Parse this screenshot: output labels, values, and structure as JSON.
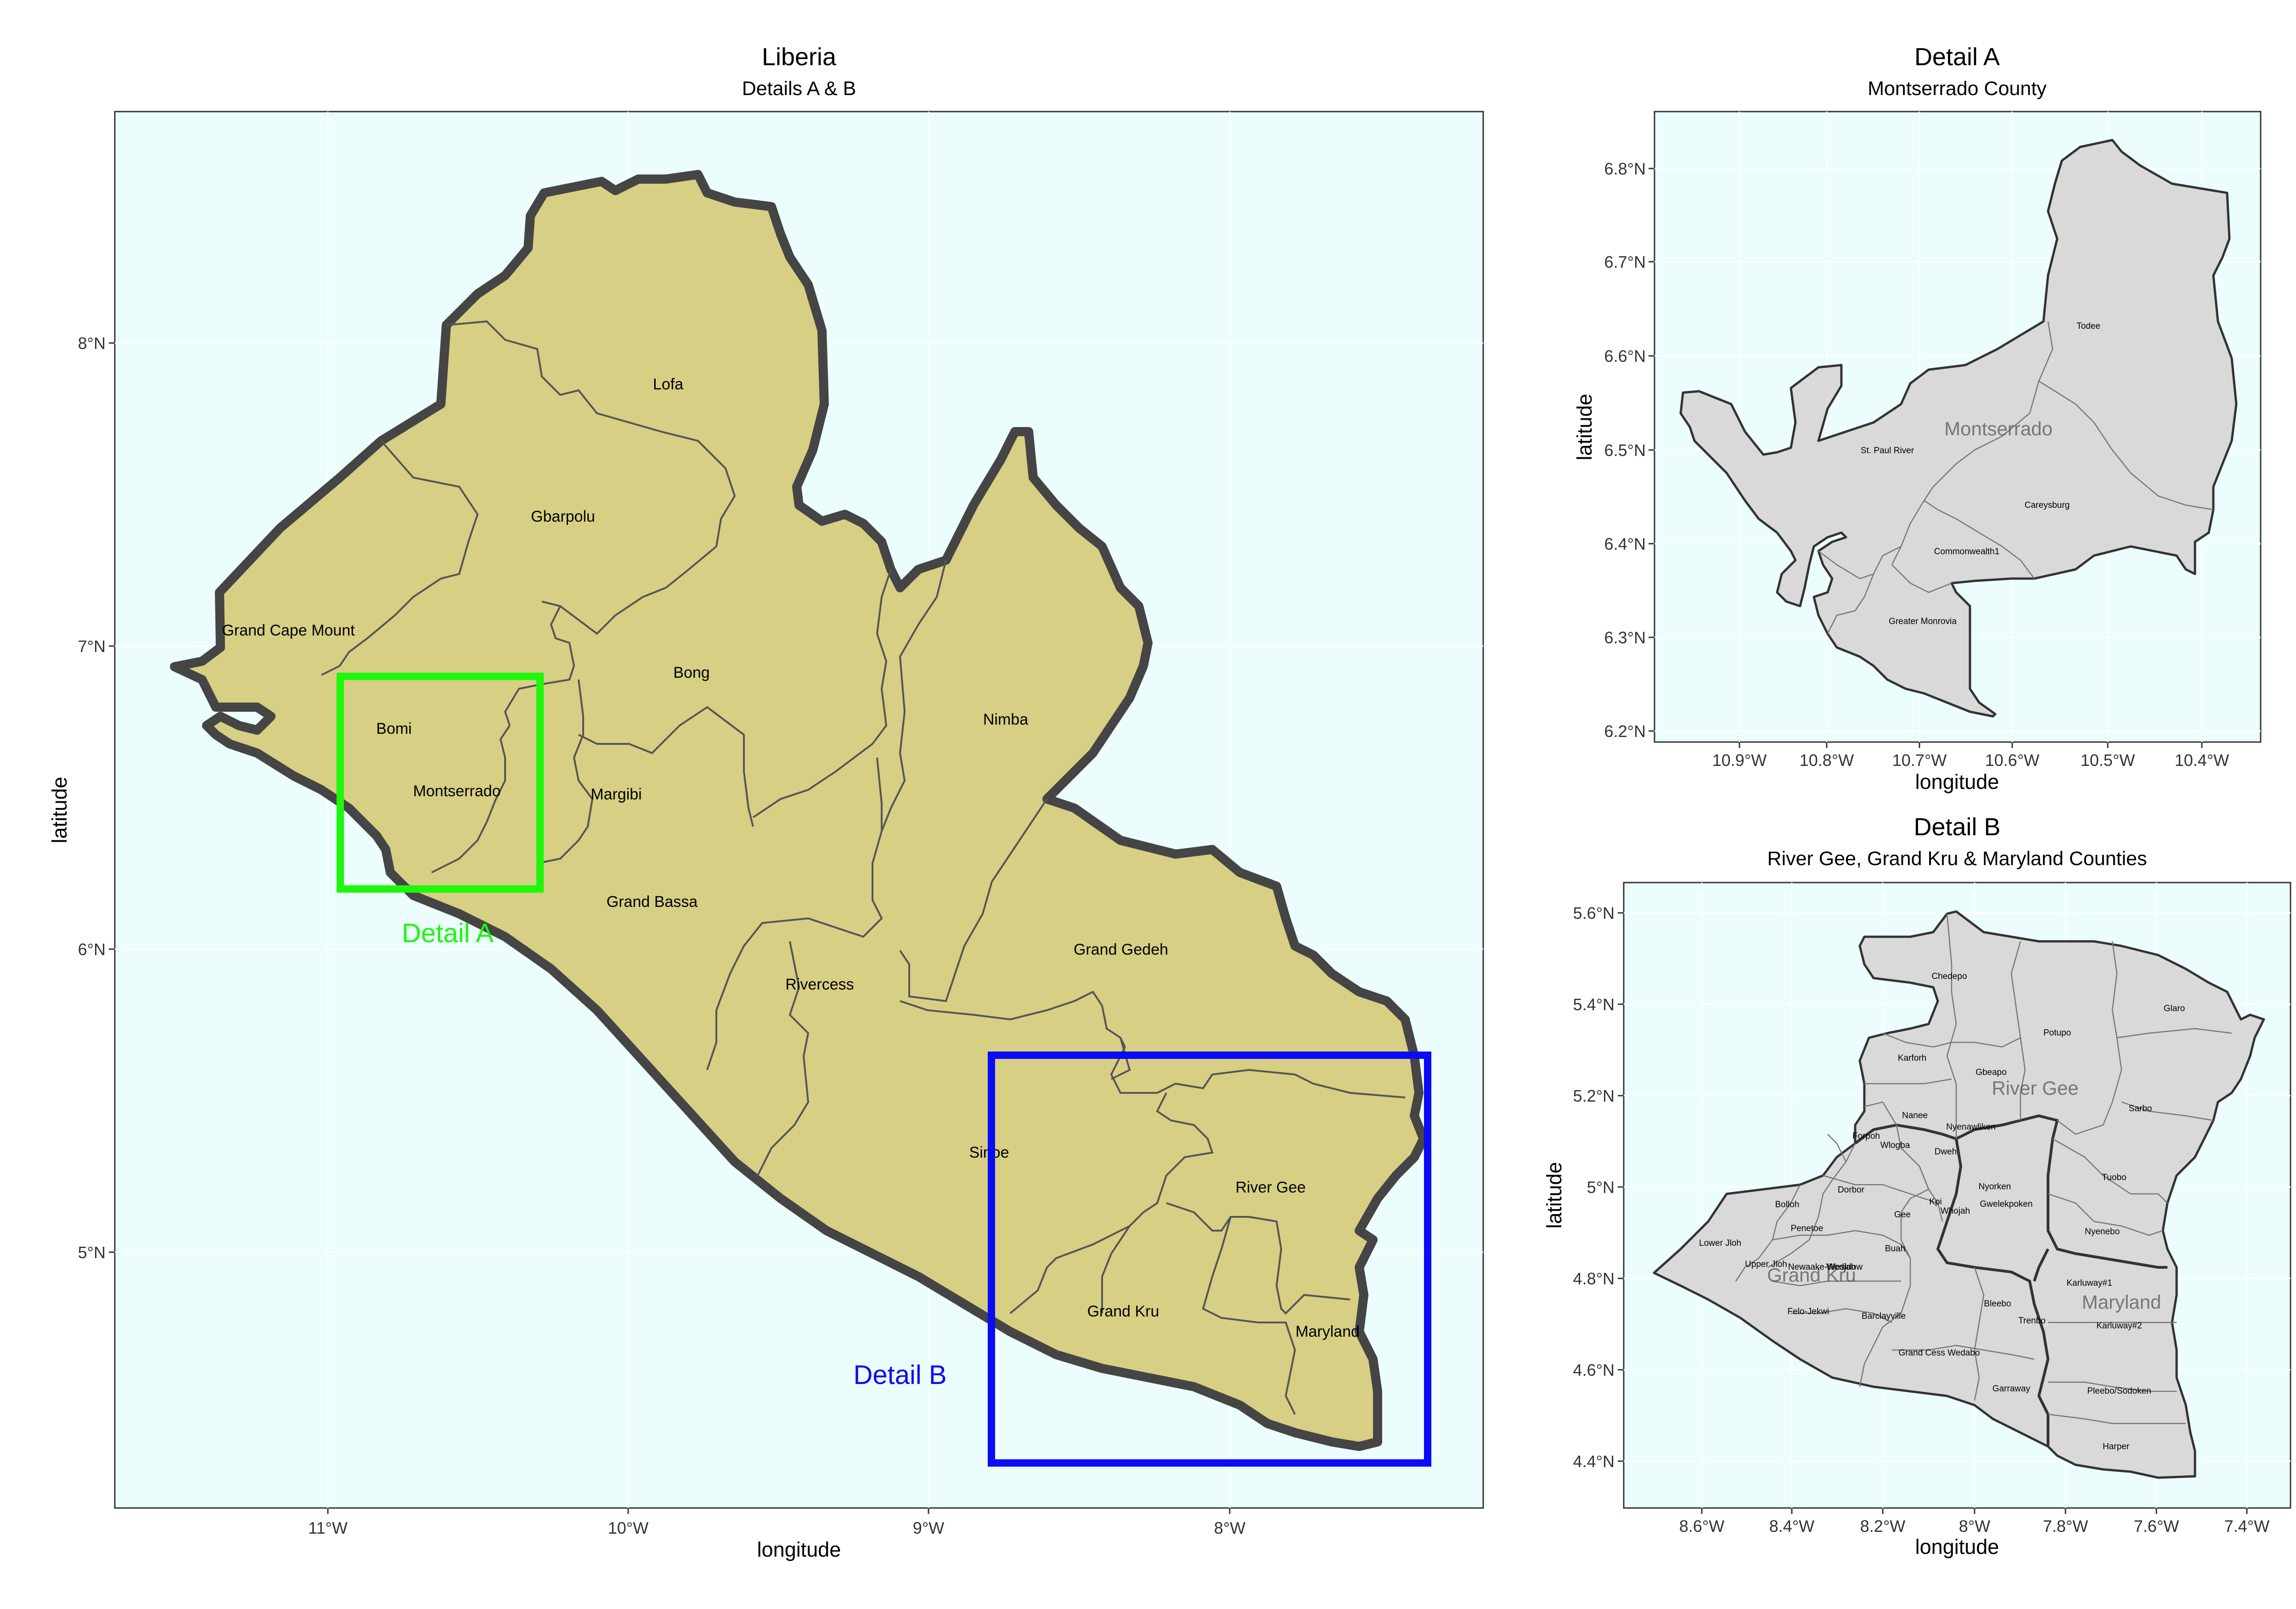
{
  "main": {
    "title": "Liberia",
    "subtitle": "Details A & B",
    "xlabel": "longitude",
    "ylabel": "latitude",
    "xticks": [
      "11°W",
      "10°W",
      "9°W",
      "8°W"
    ],
    "yticks": [
      "8°N",
      "7°N",
      "6°N",
      "5°N"
    ],
    "counties": [
      "Lofa",
      "Gbarpolu",
      "Grand Cape Mount",
      "Bong",
      "Bomi",
      "Montserrado",
      "Margibi",
      "Nimba",
      "Grand Bassa",
      "Rivercess",
      "Grand Gedeh",
      "Sinoe",
      "River Gee",
      "Grand Kru",
      "Maryland"
    ],
    "detail_a_label": "Detail A",
    "detail_b_label": "Detail B",
    "colors": {
      "land": "#d6cf84",
      "ocean": "#ebfdfd",
      "detail_a": "#1df70c",
      "detail_b": "#0b0bf5"
    }
  },
  "detail_a": {
    "title": "Detail A",
    "subtitle": "Montserrado County",
    "xlabel": "longitude",
    "ylabel": "latitude",
    "xticks": [
      "10.9°W",
      "10.8°W",
      "10.7°W",
      "10.6°W",
      "10.5°W",
      "10.4°W"
    ],
    "yticks": [
      "6.8°N",
      "6.7°N",
      "6.6°N",
      "6.5°N",
      "6.4°N",
      "6.3°N",
      "6.2°N"
    ],
    "county": "Montserrado",
    "districts": [
      "Todee",
      "St. Paul River",
      "Careysburg",
      "Commonwealth1",
      "Greater Monrovia"
    ]
  },
  "detail_b": {
    "title": "Detail B",
    "subtitle": "River Gee, Grand Kru & Maryland Counties",
    "xlabel": "longitude",
    "ylabel": "latitude",
    "xticks": [
      "8.6°W",
      "8.4°W",
      "8.2°W",
      "8°W",
      "7.8°W",
      "7.6°W",
      "7.4°W"
    ],
    "yticks": [
      "5.6°N",
      "5.4°N",
      "5.2°N",
      "5°N",
      "4.8°N",
      "4.6°N",
      "4.4°N"
    ],
    "counties": [
      "River Gee",
      "Grand Kru",
      "Maryland"
    ],
    "districts": [
      "Chedepo",
      "Glaro",
      "Potupo",
      "Karforh",
      "Gbeapo",
      "Sarbo",
      "Nanee",
      "Nyenawliken",
      "Forpoh",
      "Wlogba",
      "Dweh",
      "Tuobo",
      "Dorbor",
      "Nyorken",
      "Bolloh",
      "Kpi",
      "Gwelekpoken",
      "Gee",
      "Whojah",
      "Nyenebo",
      "Penetoe",
      "Lower Jloh",
      "Buah",
      "Upper Jloh",
      "Wedjah",
      "Newaake-Wesldow",
      "Karluway#1",
      "Felo-Jekwi",
      "Bleebo",
      "Barclayville",
      "Trenbo",
      "Karluway#2",
      "Grand Cess Wedabo",
      "Garraway",
      "Pleebo/Sodoken",
      "Harper"
    ]
  }
}
